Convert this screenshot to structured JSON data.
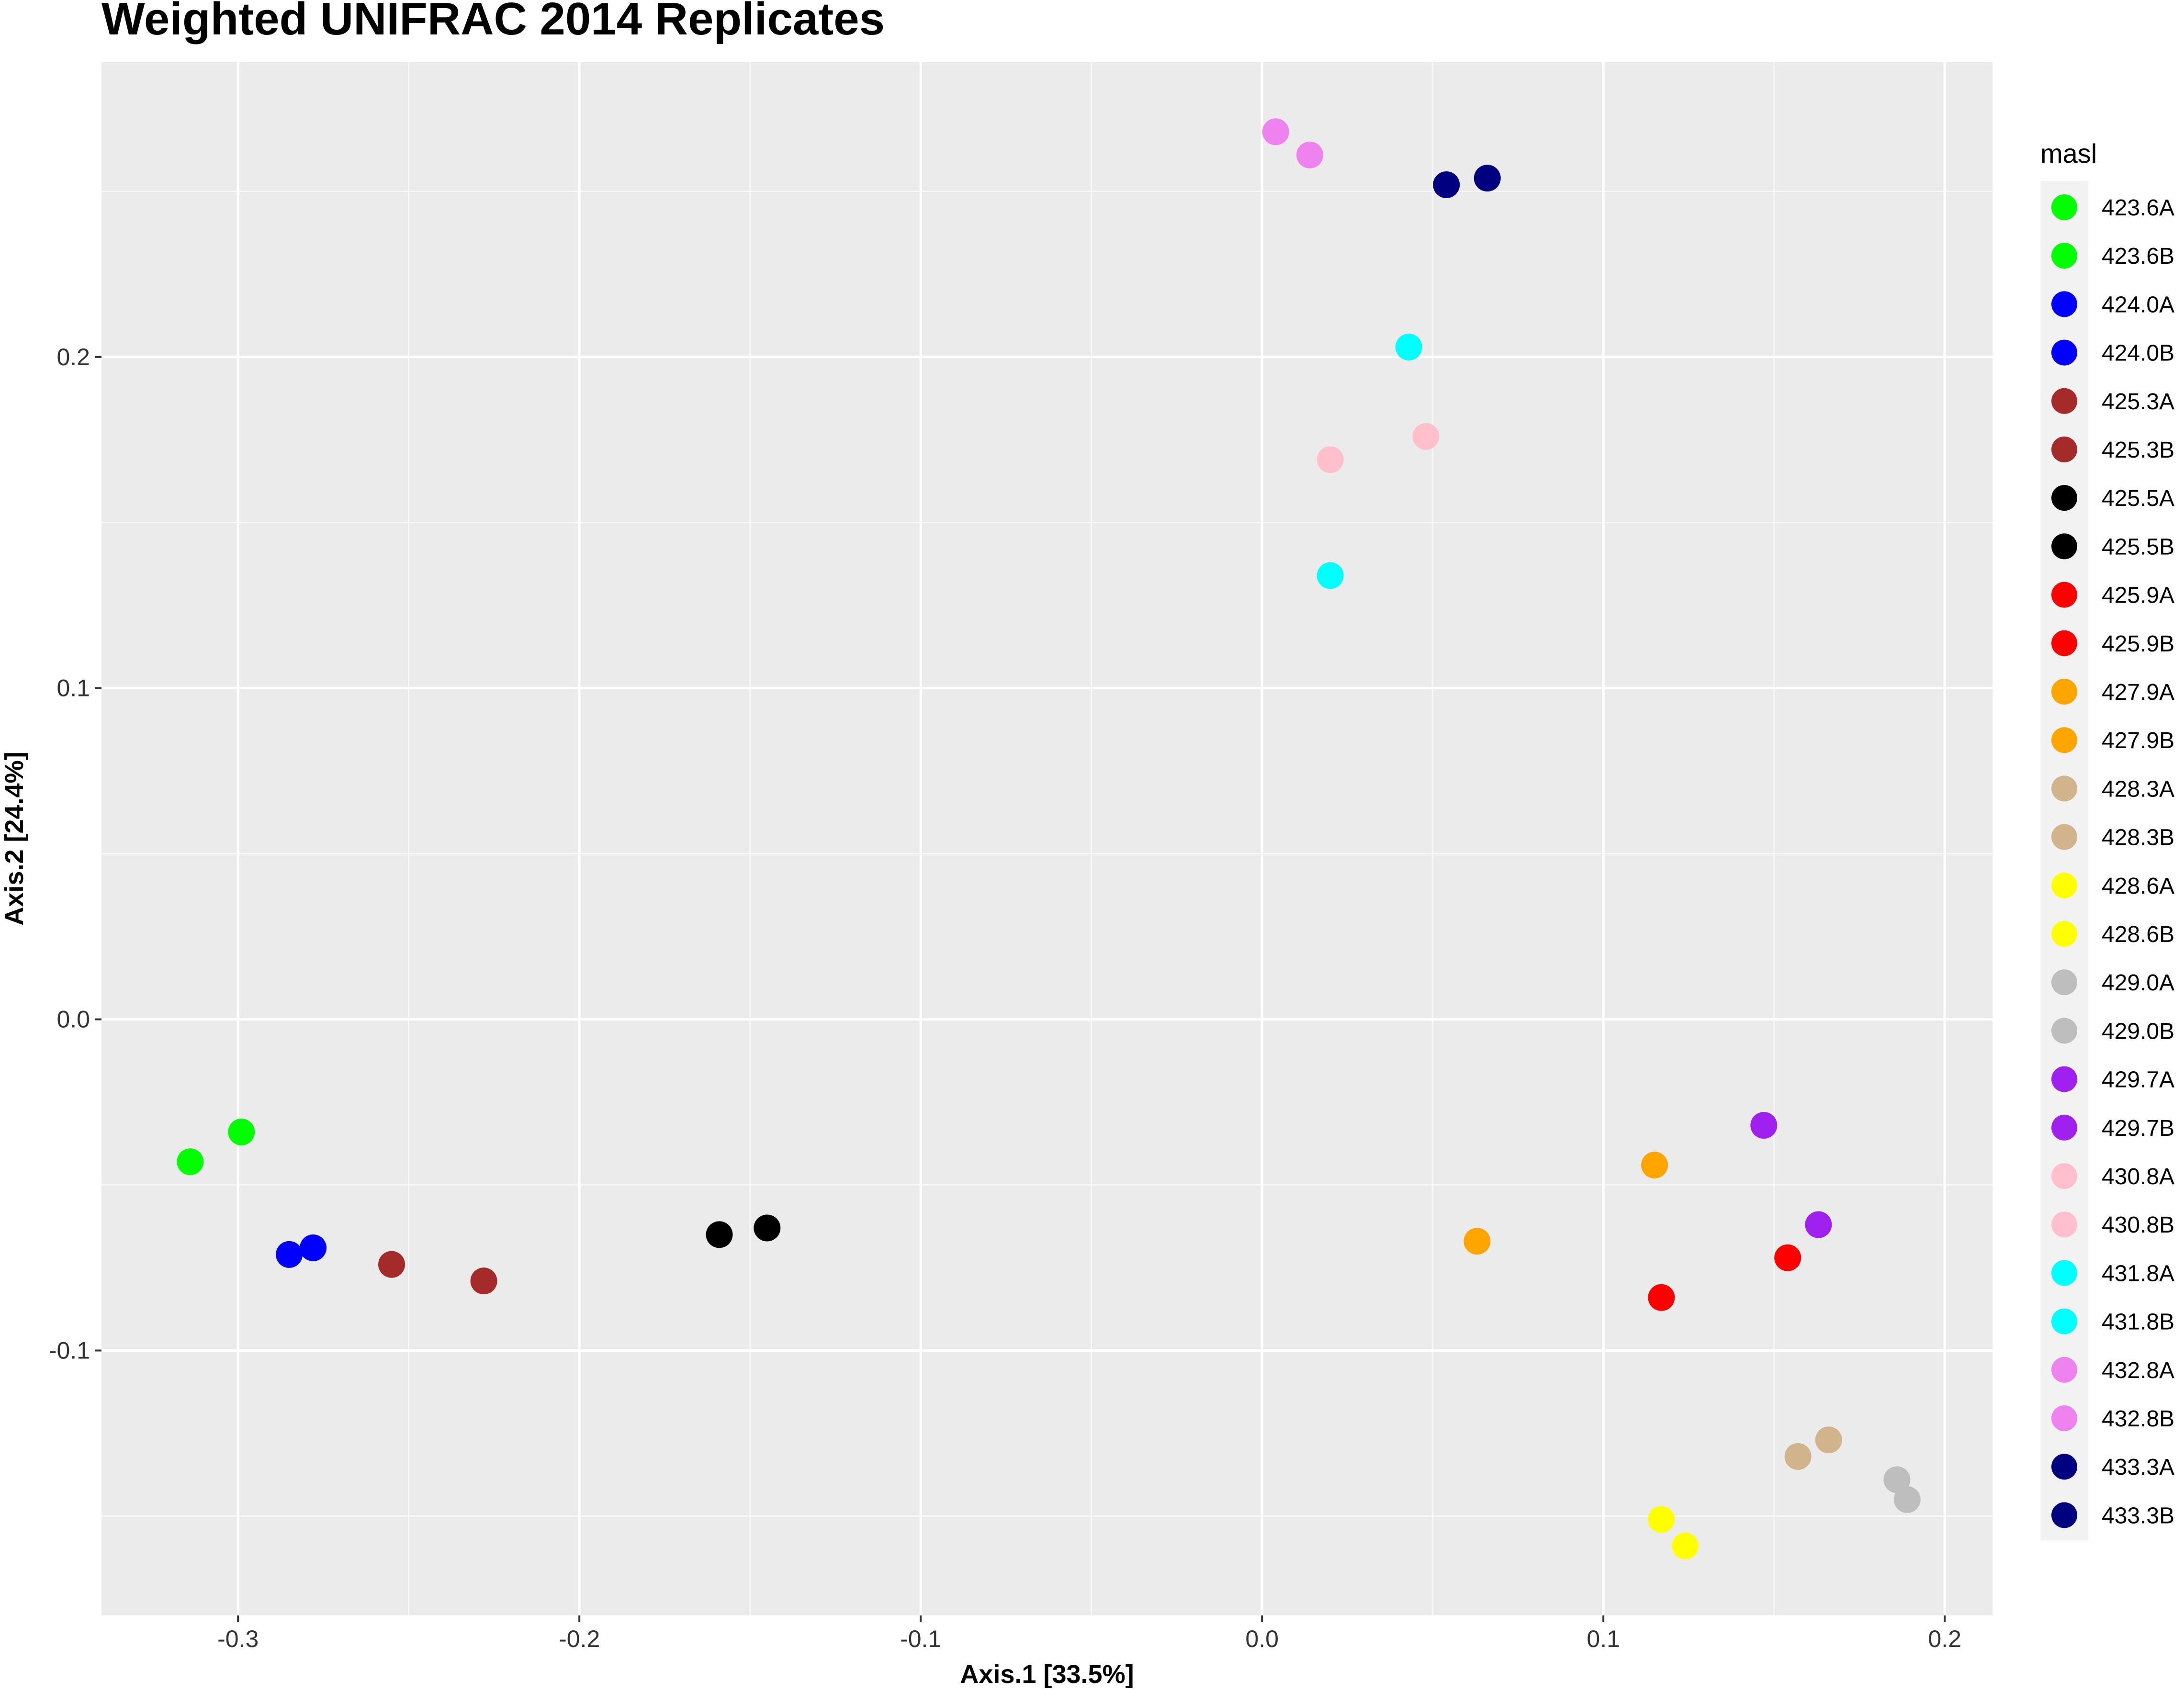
{
  "chart_data": {
    "type": "scatter",
    "title": "Weighted UNIFRAC 2014 Replicates",
    "xlabel": "Axis.1   [33.5%]",
    "ylabel": "Axis.2   [24.4%]",
    "xlim": [
      -0.34,
      0.214
    ],
    "ylim": [
      -0.18,
      0.289
    ],
    "xticks": [
      -0.3,
      -0.2,
      -0.1,
      0.0,
      0.1,
      0.2
    ],
    "xtick_labels": [
      "-0.3",
      "-0.2",
      "-0.1",
      "0.0",
      "0.1",
      "0.2"
    ],
    "yticks": [
      -0.1,
      0.0,
      0.1,
      0.2
    ],
    "ytick_labels": [
      "-0.1",
      "0.0",
      "0.1",
      "0.2"
    ],
    "grid": true,
    "legend": {
      "title": "masl",
      "position": "right",
      "entries": [
        {
          "label": "423.6A",
          "color": "#00ff00"
        },
        {
          "label": "423.6B",
          "color": "#00ff00"
        },
        {
          "label": "424.0A",
          "color": "#0000ff"
        },
        {
          "label": "424.0B",
          "color": "#0000ff"
        },
        {
          "label": "425.3A",
          "color": "#a52a2a"
        },
        {
          "label": "425.3B",
          "color": "#a52a2a"
        },
        {
          "label": "425.5A",
          "color": "#000000"
        },
        {
          "label": "425.5B",
          "color": "#000000"
        },
        {
          "label": "425.9A",
          "color": "#ff0000"
        },
        {
          "label": "425.9B",
          "color": "#ff0000"
        },
        {
          "label": "427.9A",
          "color": "#ffa500"
        },
        {
          "label": "427.9B",
          "color": "#ffa500"
        },
        {
          "label": "428.3A",
          "color": "#d2b48c"
        },
        {
          "label": "428.3B",
          "color": "#d2b48c"
        },
        {
          "label": "428.6A",
          "color": "#ffff00"
        },
        {
          "label": "428.6B",
          "color": "#ffff00"
        },
        {
          "label": "429.0A",
          "color": "#bebebe"
        },
        {
          "label": "429.0B",
          "color": "#bebebe"
        },
        {
          "label": "429.7A",
          "color": "#a020f0"
        },
        {
          "label": "429.7B",
          "color": "#a020f0"
        },
        {
          "label": "430.8A",
          "color": "#ffc0cb"
        },
        {
          "label": "430.8B",
          "color": "#ffc0cb"
        },
        {
          "label": "431.8A",
          "color": "#00ffff"
        },
        {
          "label": "431.8B",
          "color": "#00ffff"
        },
        {
          "label": "432.8A",
          "color": "#ee82ee"
        },
        {
          "label": "432.8B",
          "color": "#ee82ee"
        },
        {
          "label": "433.3A",
          "color": "#000080"
        },
        {
          "label": "433.3B",
          "color": "#000080"
        }
      ]
    },
    "points": [
      {
        "x": -0.314,
        "y": -0.043,
        "color": "#00ff00"
      },
      {
        "x": -0.299,
        "y": -0.034,
        "color": "#00ff00"
      },
      {
        "x": -0.285,
        "y": -0.071,
        "color": "#0000ff"
      },
      {
        "x": -0.278,
        "y": -0.069,
        "color": "#0000ff"
      },
      {
        "x": -0.255,
        "y": -0.074,
        "color": "#a52a2a"
      },
      {
        "x": -0.228,
        "y": -0.079,
        "color": "#a52a2a"
      },
      {
        "x": -0.159,
        "y": -0.065,
        "color": "#000000"
      },
      {
        "x": -0.145,
        "y": -0.063,
        "color": "#000000"
      },
      {
        "x": 0.117,
        "y": -0.084,
        "color": "#ff0000"
      },
      {
        "x": 0.154,
        "y": -0.072,
        "color": "#ff0000"
      },
      {
        "x": 0.115,
        "y": -0.044,
        "color": "#ffa500"
      },
      {
        "x": 0.063,
        "y": -0.067,
        "color": "#ffa500"
      },
      {
        "x": 0.157,
        "y": -0.132,
        "color": "#d2b48c"
      },
      {
        "x": 0.166,
        "y": -0.127,
        "color": "#d2b48c"
      },
      {
        "x": 0.117,
        "y": -0.151,
        "color": "#ffff00"
      },
      {
        "x": 0.124,
        "y": -0.159,
        "color": "#ffff00"
      },
      {
        "x": 0.186,
        "y": -0.139,
        "color": "#bebebe"
      },
      {
        "x": 0.189,
        "y": -0.145,
        "color": "#bebebe"
      },
      {
        "x": 0.147,
        "y": -0.032,
        "color": "#a020f0"
      },
      {
        "x": 0.163,
        "y": -0.062,
        "color": "#a020f0"
      },
      {
        "x": 0.02,
        "y": 0.169,
        "color": "#ffc0cb"
      },
      {
        "x": 0.048,
        "y": 0.176,
        "color": "#ffc0cb"
      },
      {
        "x": 0.043,
        "y": 0.203,
        "color": "#00ffff"
      },
      {
        "x": 0.02,
        "y": 0.134,
        "color": "#00ffff"
      },
      {
        "x": 0.004,
        "y": 0.268,
        "color": "#ee82ee"
      },
      {
        "x": 0.014,
        "y": 0.261,
        "color": "#ee82ee"
      },
      {
        "x": 0.054,
        "y": 0.252,
        "color": "#000080"
      },
      {
        "x": 0.066,
        "y": 0.254,
        "color": "#000080"
      }
    ]
  },
  "colors": {
    "panel_background": "#ebebeb",
    "grid_major": "#ffffff",
    "legend_key_background": "#f2f2f2"
  }
}
